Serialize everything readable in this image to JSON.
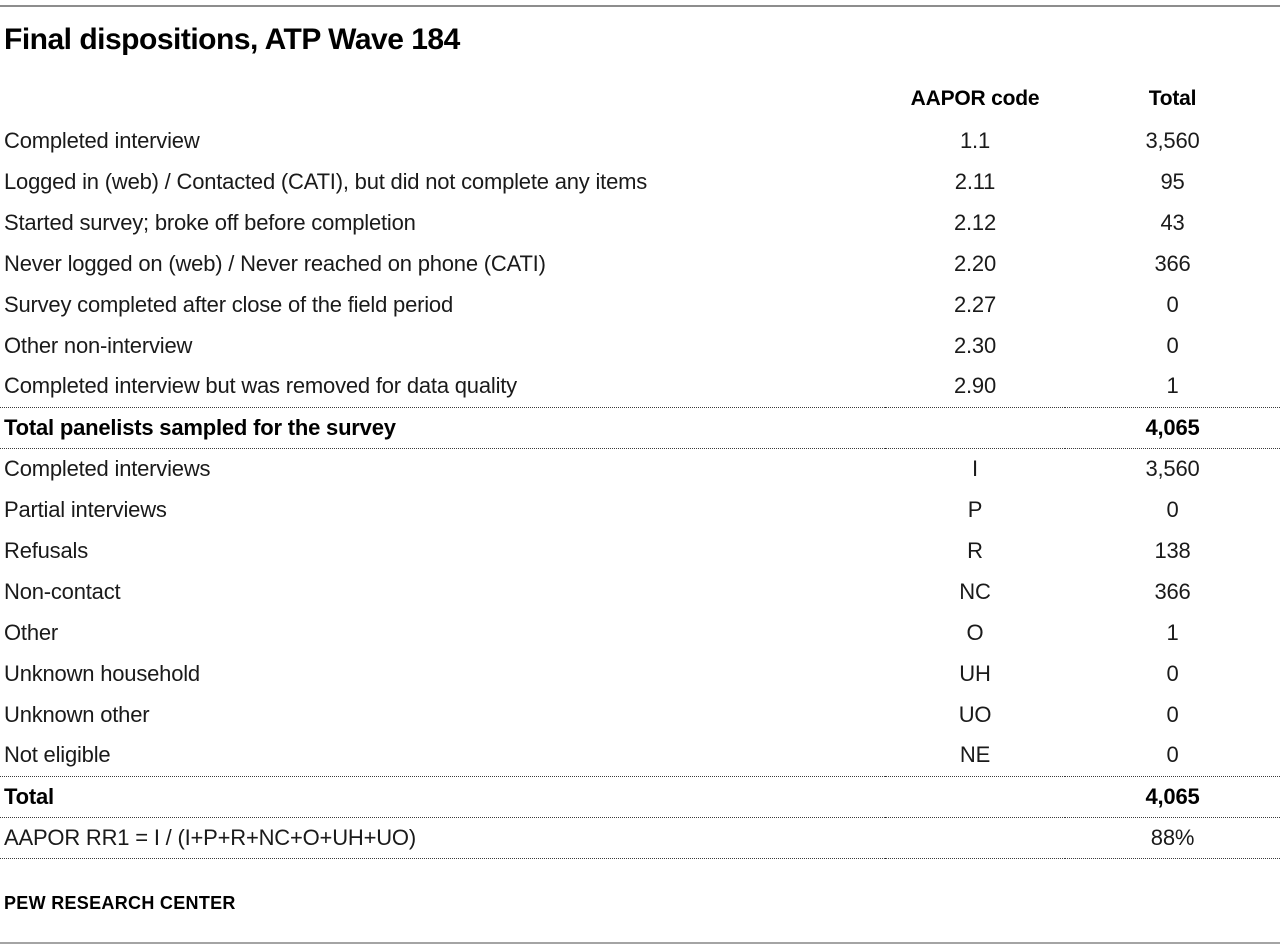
{
  "page": {
    "title": "Final dispositions, ATP Wave 184",
    "footer": "PEW RESEARCH CENTER"
  },
  "table": {
    "columns": {
      "code_header": "AAPOR code",
      "total_header": "Total"
    },
    "rows": [
      {
        "label": "Completed interview",
        "code": "1.1",
        "total": "3,560"
      },
      {
        "label": "Logged in (web) / Contacted (CATI), but did not complete any items",
        "code": "2.11",
        "total": "95"
      },
      {
        "label": "Started survey; broke off before completion",
        "code": "2.12",
        "total": "43"
      },
      {
        "label": "Never logged on (web) / Never reached on phone (CATI)",
        "code": "2.20",
        "total": "366"
      },
      {
        "label": "Survey completed after close of the field period",
        "code": "2.27",
        "total": "0"
      },
      {
        "label": "Other non-interview",
        "code": "2.30",
        "total": "0"
      },
      {
        "label": "Completed interview but was removed for data quality",
        "code": "2.90",
        "total": "1"
      },
      {
        "label": "Total panelists sampled for the survey",
        "code": "",
        "total": "4,065",
        "bold": true,
        "rule_above": true,
        "rule_below": true
      },
      {
        "label": "Completed interviews",
        "code": "I",
        "total": "3,560"
      },
      {
        "label": "Partial interviews",
        "code": "P",
        "total": "0"
      },
      {
        "label": "Refusals",
        "code": "R",
        "total": "138"
      },
      {
        "label": "Non-contact",
        "code": "NC",
        "total": "366"
      },
      {
        "label": "Other",
        "code": "O",
        "total": "1"
      },
      {
        "label": "Unknown household",
        "code": "UH",
        "total": "0"
      },
      {
        "label": "Unknown other",
        "code": "UO",
        "total": "0"
      },
      {
        "label": "Not eligible",
        "code": "NE",
        "total": "0"
      },
      {
        "label": "Total",
        "code": "",
        "total": "4,065",
        "bold": true,
        "rule_above": true,
        "rule_below": true
      },
      {
        "label": "AAPOR RR1 = I / (I+P+R+NC+O+UH+UO)",
        "code": "",
        "total": "88%",
        "rule_below": true
      }
    ]
  }
}
